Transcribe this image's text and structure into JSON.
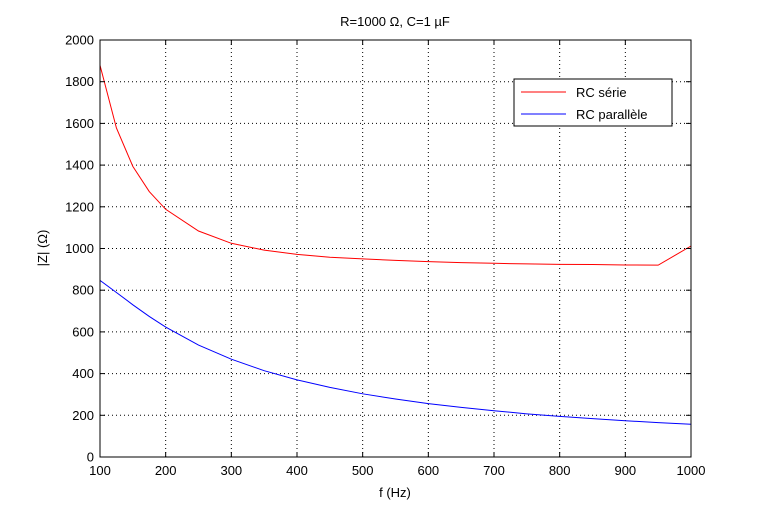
{
  "chart_data": {
    "type": "line",
    "title": "R=1000 Ω, C=1 µF",
    "xlabel": "f (Hz)",
    "ylabel": "|Z| (Ω)",
    "xlim": [
      100,
      1000
    ],
    "ylim": [
      0,
      2000
    ],
    "x_ticks": [
      100,
      200,
      300,
      400,
      500,
      600,
      700,
      800,
      900,
      1000
    ],
    "y_ticks": [
      0,
      200,
      400,
      600,
      800,
      1000,
      1200,
      1400,
      1600,
      1800,
      2000
    ],
    "grid": true,
    "legend_position": "top-right",
    "x": [
      100,
      125,
      150,
      175,
      200,
      250,
      300,
      350,
      400,
      450,
      500,
      550,
      600,
      650,
      700,
      750,
      800,
      850,
      900,
      950,
      1000
    ],
    "series": [
      {
        "name": "RC série",
        "color": "#ff0000",
        "values": [
          1879,
          1578,
          1394,
          1273,
          1188,
          1084,
          1025,
          992,
          972,
          958,
          950,
          943,
          937,
          932,
          929,
          926,
          924,
          923,
          921,
          920,
          1012
        ]
      },
      {
        "name": "RC parallèle",
        "color": "#0000ff",
        "values": [
          847,
          789,
          730,
          674,
          623,
          537,
          469,
          414,
          370,
          334,
          303,
          278,
          256,
          238,
          222,
          207,
          195,
          184,
          174,
          165,
          157
        ]
      }
    ]
  }
}
